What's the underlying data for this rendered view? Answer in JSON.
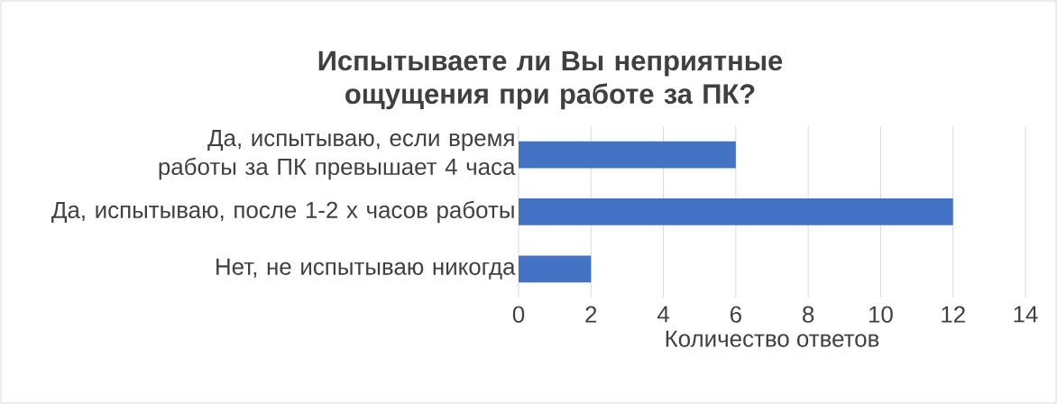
{
  "chart_data": {
    "type": "bar",
    "orientation": "horizontal",
    "title": "Испытываете ли Вы неприятные ощущения при работе за ПК?",
    "xlabel": "Количество ответов",
    "categories": [
      "Да, испытываю, если время работы за ПК превышает 4 часа",
      "Да, испытываю, после 1-2 х часов работы",
      "Нет, не испытываю никогда"
    ],
    "values": [
      6,
      12,
      2
    ],
    "color": "#4472c4",
    "xlim": [
      0,
      14
    ],
    "xticks": [
      0,
      2,
      4,
      6,
      8,
      10,
      12,
      14
    ],
    "grid": "x"
  }
}
